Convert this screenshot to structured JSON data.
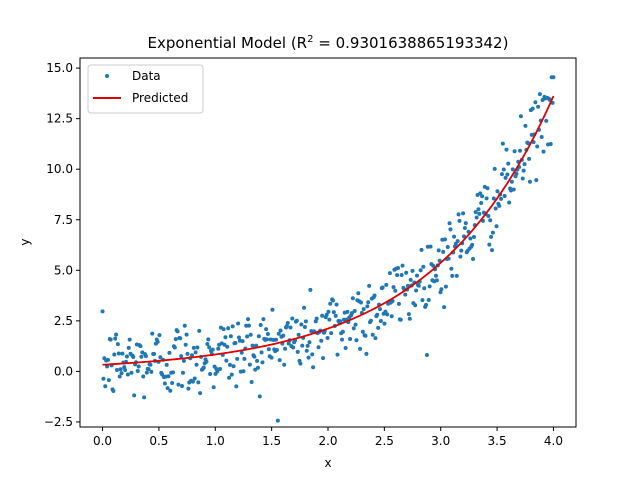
{
  "chart_data": {
    "type": "scatter",
    "title": "Exponential Model (R",
    "title_sup": "2",
    "title_rest": " = 0.9301638865193342)",
    "xlabel": "x",
    "ylabel": "y",
    "xlim": [
      -0.2,
      4.2
    ],
    "ylim": [
      -2.75,
      15.5
    ],
    "xticks": [
      0.0,
      0.5,
      1.0,
      1.5,
      2.0,
      2.5,
      3.0,
      3.5,
      4.0
    ],
    "xtick_labels": [
      "0.0",
      "0.5",
      "1.0",
      "1.5",
      "2.0",
      "2.5",
      "3.0",
      "3.5",
      "4.0"
    ],
    "yticks": [
      -2.5,
      0.0,
      2.5,
      5.0,
      7.5,
      10.0,
      12.5,
      15.0
    ],
    "ytick_labels": [
      "−2.5",
      "0.0",
      "2.5",
      "5.0",
      "7.5",
      "10.0",
      "12.5",
      "15.0"
    ],
    "grid": false,
    "legend_position": "top-left",
    "series": [
      {
        "name": "Data",
        "kind": "scatter",
        "color": "#1f77b4",
        "model": {
          "a": 0.33,
          "b": 0.93,
          "noise_sd": 0.95,
          "n": 500,
          "x_range": [
            0,
            4
          ]
        }
      },
      {
        "name": "Predicted",
        "kind": "line",
        "color": "#e00000",
        "model": {
          "a": 0.33,
          "b": 0.93,
          "x_range": [
            0,
            4
          ]
        }
      }
    ]
  }
}
